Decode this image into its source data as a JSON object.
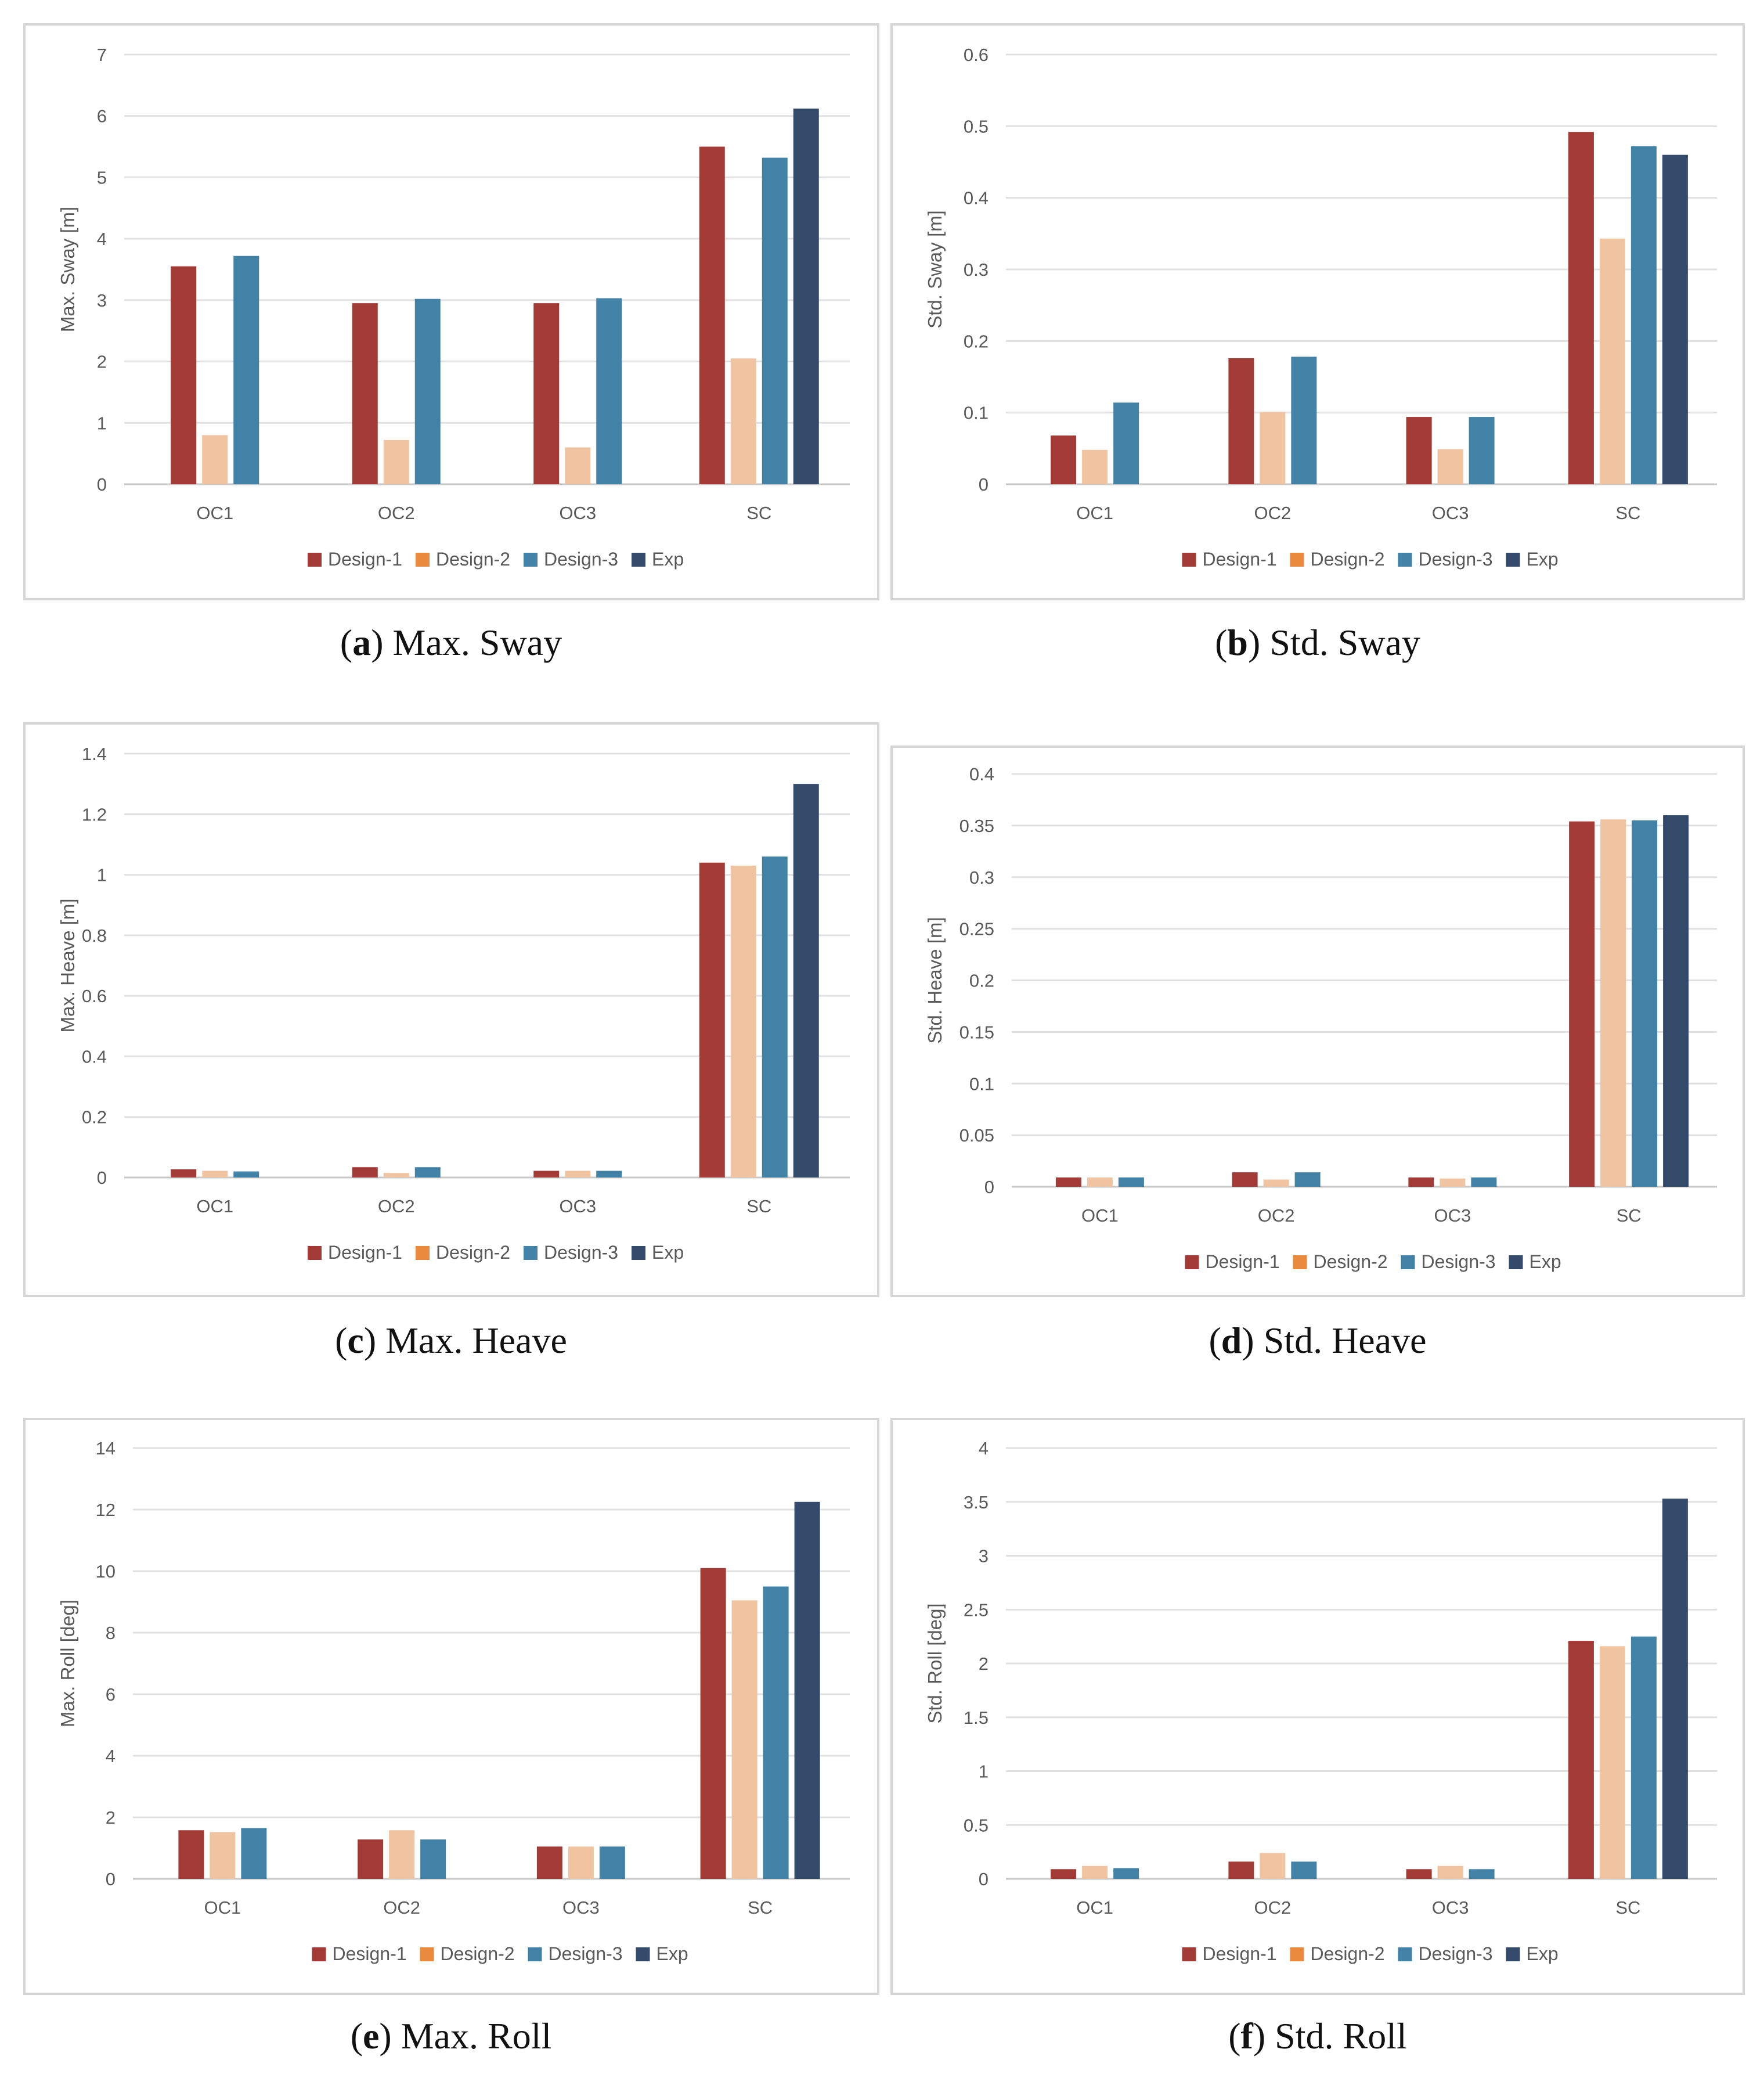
{
  "colors": {
    "Design-1": "#a23b35",
    "Design-2": "#f0c3a1",
    "Design-2-legend": "#ea8a3f",
    "Design-3": "#4282a7",
    "Exp": "#344a6a",
    "grid": "#e0e0e0",
    "axis": "#c8c8c8",
    "tick_text": "#595959"
  },
  "charts": [
    {
      "id": "a",
      "caption_letter": "a",
      "caption_text": "Max. Sway",
      "chart_data": {
        "type": "bar",
        "title": "",
        "ylabel": "Max. Sway [m]",
        "xlabel": "",
        "categories": [
          "OC1",
          "OC2",
          "OC3",
          "SC"
        ],
        "ylim": [
          0,
          7
        ],
        "yticks": [
          "0",
          "1",
          "2",
          "3",
          "4",
          "5",
          "6",
          "7"
        ],
        "grid": true,
        "legend_position": "bottom",
        "series": [
          {
            "name": "Design-1",
            "values": [
              3.55,
              2.95,
              2.95,
              5.5
            ]
          },
          {
            "name": "Design-2",
            "values": [
              0.8,
              0.72,
              0.6,
              2.05
            ]
          },
          {
            "name": "Design-3",
            "values": [
              3.72,
              3.02,
              3.03,
              5.32
            ]
          },
          {
            "name": "Exp",
            "values": [
              null,
              null,
              null,
              6.12
            ]
          }
        ]
      }
    },
    {
      "id": "b",
      "caption_letter": "b",
      "caption_text": "Std. Sway",
      "chart_data": {
        "type": "bar",
        "title": "",
        "ylabel": "Std. Sway [m]",
        "xlabel": "",
        "categories": [
          "OC1",
          "OC2",
          "OC3",
          "SC"
        ],
        "ylim": [
          0,
          0.6
        ],
        "yticks": [
          "0",
          "0.1",
          "0.2",
          "0.3",
          "0.4",
          "0.5",
          "0.6"
        ],
        "grid": true,
        "legend_position": "bottom",
        "series": [
          {
            "name": "Design-1",
            "values": [
              0.068,
              0.176,
              0.094,
              0.492
            ]
          },
          {
            "name": "Design-2",
            "values": [
              0.048,
              0.101,
              0.049,
              0.343
            ]
          },
          {
            "name": "Design-3",
            "values": [
              0.114,
              0.178,
              0.094,
              0.472
            ]
          },
          {
            "name": "Exp",
            "values": [
              null,
              null,
              null,
              0.46
            ]
          }
        ]
      }
    },
    {
      "id": "c",
      "caption_letter": "c",
      "caption_text": "Max. Heave",
      "chart_data": {
        "type": "bar",
        "title": "",
        "ylabel": "Max. Heave [m]",
        "xlabel": "",
        "categories": [
          "OC1",
          "OC2",
          "OC3",
          "SC"
        ],
        "ylim": [
          0,
          1.4
        ],
        "yticks": [
          "0",
          "0.2",
          "0.4",
          "0.6",
          "0.8",
          "1",
          "1.2",
          "1.4"
        ],
        "grid": true,
        "legend_position": "bottom",
        "series": [
          {
            "name": "Design-1",
            "values": [
              0.027,
              0.034,
              0.022,
              1.04
            ]
          },
          {
            "name": "Design-2",
            "values": [
              0.022,
              0.015,
              0.022,
              1.03
            ]
          },
          {
            "name": "Design-3",
            "values": [
              0.02,
              0.034,
              0.022,
              1.06
            ]
          },
          {
            "name": "Exp",
            "values": [
              null,
              null,
              null,
              1.3
            ]
          }
        ]
      }
    },
    {
      "id": "d",
      "caption_letter": "d",
      "caption_text": "Std. Heave",
      "chart_data": {
        "type": "bar",
        "title": "",
        "ylabel": "Std. Heave [m]",
        "xlabel": "",
        "categories": [
          "OC1",
          "OC2",
          "OC3",
          "SC"
        ],
        "ylim": [
          0,
          0.4
        ],
        "yticks": [
          "0",
          "0.05",
          "0.1",
          "0.15",
          "0.2",
          "0.25",
          "0.3",
          "0.35",
          "0.4"
        ],
        "grid": true,
        "legend_position": "bottom",
        "series": [
          {
            "name": "Design-1",
            "values": [
              0.009,
              0.014,
              0.009,
              0.354
            ]
          },
          {
            "name": "Design-2",
            "values": [
              0.009,
              0.007,
              0.008,
              0.356
            ]
          },
          {
            "name": "Design-3",
            "values": [
              0.009,
              0.014,
              0.009,
              0.355
            ]
          },
          {
            "name": "Exp",
            "values": [
              null,
              null,
              null,
              0.36
            ]
          }
        ]
      }
    },
    {
      "id": "e",
      "caption_letter": "e",
      "caption_text": "Max. Roll",
      "chart_data": {
        "type": "bar",
        "title": "",
        "ylabel": "Max. Roll [deg]",
        "xlabel": "",
        "categories": [
          "OC1",
          "OC2",
          "OC3",
          "SC"
        ],
        "ylim": [
          0,
          14
        ],
        "yticks": [
          "0",
          "2",
          "4",
          "6",
          "8",
          "10",
          "12",
          "14"
        ],
        "grid": true,
        "legend_position": "bottom",
        "series": [
          {
            "name": "Design-1",
            "values": [
              1.58,
              1.28,
              1.05,
              10.1
            ]
          },
          {
            "name": "Design-2",
            "values": [
              1.52,
              1.58,
              1.05,
              9.05
            ]
          },
          {
            "name": "Design-3",
            "values": [
              1.65,
              1.28,
              1.05,
              9.5
            ]
          },
          {
            "name": "Exp",
            "values": [
              null,
              null,
              null,
              12.25
            ]
          }
        ]
      }
    },
    {
      "id": "f",
      "caption_letter": "f",
      "caption_text": "Std. Roll",
      "chart_data": {
        "type": "bar",
        "title": "",
        "ylabel": "Std. Roll [deg]",
        "xlabel": "",
        "categories": [
          "OC1",
          "OC2",
          "OC3",
          "SC"
        ],
        "ylim": [
          0,
          4
        ],
        "yticks": [
          "0",
          "0.5",
          "1",
          "1.5",
          "2",
          "2.5",
          "3",
          "3.5",
          "4"
        ],
        "grid": true,
        "legend_position": "bottom",
        "series": [
          {
            "name": "Design-1",
            "values": [
              0.09,
              0.16,
              0.09,
              2.21
            ]
          },
          {
            "name": "Design-2",
            "values": [
              0.12,
              0.24,
              0.12,
              2.16
            ]
          },
          {
            "name": "Design-3",
            "values": [
              0.1,
              0.16,
              0.09,
              2.25
            ]
          },
          {
            "name": "Exp",
            "values": [
              null,
              null,
              null,
              3.53
            ]
          }
        ]
      }
    }
  ]
}
